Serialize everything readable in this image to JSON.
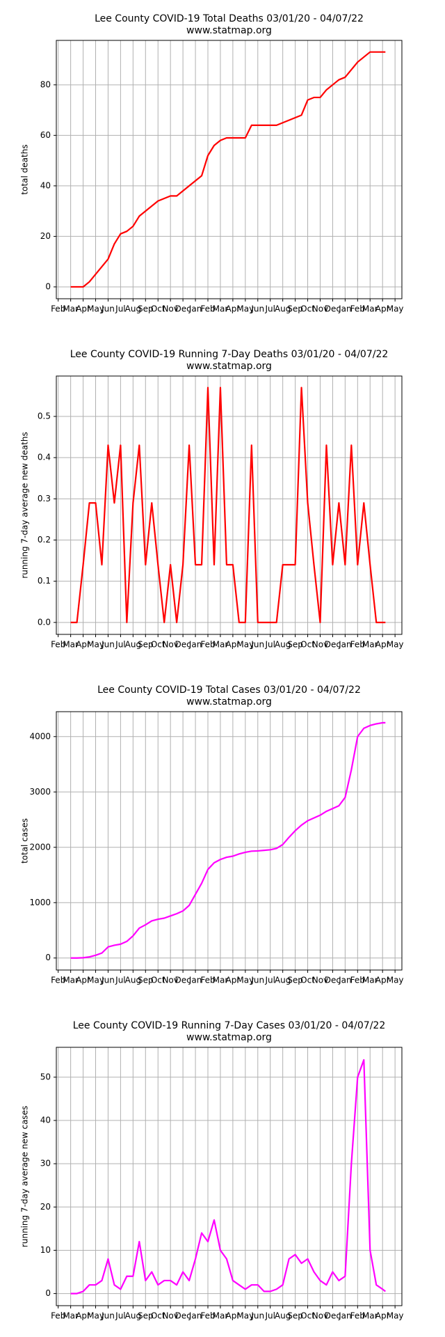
{
  "chart_data": [
    {
      "type": "line",
      "title": "Lee County COVID-19 Total Deaths 03/01/20 - 04/07/22",
      "subtitle": "www.statmap.org",
      "y_label": "total deaths",
      "color": "#ff0000",
      "grid": true,
      "x": [
        1,
        1.5,
        2,
        2.5,
        3,
        3.5,
        4,
        4.5,
        5,
        5.5,
        6,
        6.5,
        7,
        7.5,
        8,
        8.5,
        9,
        9.5,
        10,
        10.5,
        11,
        11.5,
        12,
        12.5,
        13,
        13.5,
        14,
        14.5,
        15,
        15.5,
        16,
        16.5,
        17,
        17.5,
        18,
        18.5,
        19,
        19.5,
        20,
        20.5,
        21,
        21.5,
        22,
        22.5,
        23,
        23.5,
        24,
        24.5,
        25,
        25.5,
        26,
        26.23
      ],
      "values": [
        0,
        0,
        0,
        2,
        5,
        8,
        11,
        17,
        21,
        22,
        24,
        28,
        30,
        32,
        34,
        35,
        36,
        36,
        38,
        40,
        42,
        44,
        52,
        56,
        58,
        59,
        59,
        59,
        59,
        64,
        64,
        64,
        64,
        64,
        65,
        66,
        67,
        68,
        74,
        75,
        75,
        78,
        80,
        82,
        83,
        86,
        89,
        91,
        93,
        93,
        93,
        93
      ],
      "xlim": [
        -0.15,
        27.55
      ],
      "ylim": [
        -4.7,
        97.6
      ],
      "yticks": [
        0,
        20,
        40,
        60,
        80
      ],
      "xticks": [
        {
          "value": 0,
          "label": "Feb"
        },
        {
          "value": 1,
          "label": "Mar"
        },
        {
          "value": 2,
          "label": "Apr"
        },
        {
          "value": 3,
          "label": "May"
        },
        {
          "value": 4,
          "label": "Jun"
        },
        {
          "value": 5,
          "label": "Jul"
        },
        {
          "value": 6,
          "label": "Aug"
        },
        {
          "value": 7,
          "label": "Sep"
        },
        {
          "value": 8,
          "label": "Oct"
        },
        {
          "value": 9,
          "label": "Nov"
        },
        {
          "value": 10,
          "label": "Dec"
        },
        {
          "value": 11,
          "label": "Jan"
        },
        {
          "value": 12,
          "label": "Feb"
        },
        {
          "value": 13,
          "label": "Mar"
        },
        {
          "value": 14,
          "label": "Apr"
        },
        {
          "value": 15,
          "label": "May"
        },
        {
          "value": 16,
          "label": "Jun"
        },
        {
          "value": 17,
          "label": "Jul"
        },
        {
          "value": 18,
          "label": "Aug"
        },
        {
          "value": 19,
          "label": "Sep"
        },
        {
          "value": 20,
          "label": "Oct"
        },
        {
          "value": 21,
          "label": "Nov"
        },
        {
          "value": 22,
          "label": "Dec"
        },
        {
          "value": 23,
          "label": "Jan"
        },
        {
          "value": 24,
          "label": "Feb"
        },
        {
          "value": 25,
          "label": "Mar"
        },
        {
          "value": 26,
          "label": "Apr"
        },
        {
          "value": 27,
          "label": "May"
        }
      ]
    },
    {
      "type": "line",
      "title": "Lee County COVID-19 Running 7-Day Deaths 03/01/20 - 04/07/22",
      "subtitle": "www.statmap.org",
      "y_label": "running 7-day average new deaths",
      "color": "#ff0000",
      "grid": true,
      "x": [
        1,
        1.5,
        2,
        2.5,
        3,
        3.5,
        4,
        4.5,
        5,
        5.5,
        6,
        6.5,
        7,
        7.5,
        8,
        8.5,
        9,
        9.5,
        10,
        10.5,
        11,
        11.5,
        12,
        12.5,
        13,
        13.5,
        14,
        14.5,
        15,
        15.5,
        16,
        16.5,
        17,
        17.5,
        18,
        18.5,
        19,
        19.5,
        20,
        20.5,
        21,
        21.5,
        22,
        22.5,
        23,
        23.5,
        24,
        24.5,
        25,
        25.5,
        26,
        26.23
      ],
      "values": [
        0,
        0,
        0.14,
        0.29,
        0.29,
        0.14,
        0.43,
        0.29,
        0.43,
        0,
        0.29,
        0.43,
        0.14,
        0.29,
        0.14,
        0,
        0.14,
        0,
        0.14,
        0.43,
        0.14,
        0.14,
        0.57,
        0.14,
        0.57,
        0.14,
        0.14,
        0,
        0,
        0.43,
        0,
        0,
        0,
        0,
        0.14,
        0.14,
        0.14,
        0.57,
        0.29,
        0.14,
        0,
        0.43,
        0.14,
        0.29,
        0.14,
        0.43,
        0.14,
        0.29,
        0.14,
        0,
        0,
        0
      ],
      "xlim": [
        -0.15,
        27.55
      ],
      "ylim": [
        -0.029,
        0.598
      ],
      "yticks": [
        {
          "value": 0,
          "label": "0.0"
        },
        {
          "value": 0.1,
          "label": "0.1"
        },
        {
          "value": 0.2,
          "label": "0.2"
        },
        {
          "value": 0.3,
          "label": "0.3"
        },
        {
          "value": 0.4,
          "label": "0.4"
        },
        {
          "value": 0.5,
          "label": "0.5"
        }
      ],
      "xticks": [
        {
          "value": 0,
          "label": "Feb"
        },
        {
          "value": 1,
          "label": "Mar"
        },
        {
          "value": 2,
          "label": "Apr"
        },
        {
          "value": 3,
          "label": "May"
        },
        {
          "value": 4,
          "label": "Jun"
        },
        {
          "value": 5,
          "label": "Jul"
        },
        {
          "value": 6,
          "label": "Aug"
        },
        {
          "value": 7,
          "label": "Sep"
        },
        {
          "value": 8,
          "label": "Oct"
        },
        {
          "value": 9,
          "label": "Nov"
        },
        {
          "value": 10,
          "label": "Dec"
        },
        {
          "value": 11,
          "label": "Jan"
        },
        {
          "value": 12,
          "label": "Feb"
        },
        {
          "value": 13,
          "label": "Mar"
        },
        {
          "value": 14,
          "label": "Apr"
        },
        {
          "value": 15,
          "label": "May"
        },
        {
          "value": 16,
          "label": "Jun"
        },
        {
          "value": 17,
          "label": "Jul"
        },
        {
          "value": 18,
          "label": "Aug"
        },
        {
          "value": 19,
          "label": "Sep"
        },
        {
          "value": 20,
          "label": "Oct"
        },
        {
          "value": 21,
          "label": "Nov"
        },
        {
          "value": 22,
          "label": "Dec"
        },
        {
          "value": 23,
          "label": "Jan"
        },
        {
          "value": 24,
          "label": "Feb"
        },
        {
          "value": 25,
          "label": "Mar"
        },
        {
          "value": 26,
          "label": "Apr"
        },
        {
          "value": 27,
          "label": "May"
        }
      ]
    },
    {
      "type": "line",
      "title": "Lee County COVID-19 Total Cases 03/01/20 - 04/07/22",
      "subtitle": "www.statmap.org",
      "y_label": "total cases",
      "color": "#ff00ff",
      "grid": true,
      "x": [
        1,
        1.5,
        2,
        2.5,
        3,
        3.5,
        4,
        4.5,
        5,
        5.5,
        6,
        6.5,
        7,
        7.5,
        8,
        8.5,
        9,
        9.5,
        10,
        10.5,
        11,
        11.5,
        12,
        12.5,
        13,
        13.5,
        14,
        14.5,
        15,
        15.5,
        16,
        16.5,
        17,
        17.5,
        18,
        18.5,
        19,
        19.5,
        20,
        20.5,
        21,
        21.5,
        22,
        22.5,
        23,
        23.5,
        24,
        24.5,
        25,
        25.5,
        26,
        26.23
      ],
      "values": [
        0,
        0,
        5,
        20,
        50,
        90,
        200,
        230,
        250,
        300,
        400,
        540,
        600,
        670,
        700,
        720,
        760,
        800,
        850,
        950,
        1150,
        1350,
        1600,
        1720,
        1780,
        1820,
        1840,
        1880,
        1910,
        1930,
        1935,
        1945,
        1955,
        1980,
        2050,
        2180,
        2300,
        2400,
        2480,
        2530,
        2580,
        2650,
        2700,
        2750,
        2900,
        3400,
        4000,
        4150,
        4200,
        4230,
        4250,
        4250
      ],
      "xlim": [
        -0.15,
        27.55
      ],
      "ylim": [
        -217,
        4450
      ],
      "yticks": [
        0,
        1000,
        2000,
        3000,
        4000
      ],
      "xticks": [
        {
          "value": 0,
          "label": "Feb"
        },
        {
          "value": 1,
          "label": "Mar"
        },
        {
          "value": 2,
          "label": "Apr"
        },
        {
          "value": 3,
          "label": "May"
        },
        {
          "value": 4,
          "label": "Jun"
        },
        {
          "value": 5,
          "label": "Jul"
        },
        {
          "value": 6,
          "label": "Aug"
        },
        {
          "value": 7,
          "label": "Sep"
        },
        {
          "value": 8,
          "label": "Oct"
        },
        {
          "value": 9,
          "label": "Nov"
        },
        {
          "value": 10,
          "label": "Dec"
        },
        {
          "value": 11,
          "label": "Jan"
        },
        {
          "value": 12,
          "label": "Feb"
        },
        {
          "value": 13,
          "label": "Mar"
        },
        {
          "value": 14,
          "label": "Apr"
        },
        {
          "value": 15,
          "label": "May"
        },
        {
          "value": 16,
          "label": "Jun"
        },
        {
          "value": 17,
          "label": "Jul"
        },
        {
          "value": 18,
          "label": "Aug"
        },
        {
          "value": 19,
          "label": "Sep"
        },
        {
          "value": 20,
          "label": "Oct"
        },
        {
          "value": 21,
          "label": "Nov"
        },
        {
          "value": 22,
          "label": "Dec"
        },
        {
          "value": 23,
          "label": "Jan"
        },
        {
          "value": 24,
          "label": "Feb"
        },
        {
          "value": 25,
          "label": "Mar"
        },
        {
          "value": 26,
          "label": "Apr"
        },
        {
          "value": 27,
          "label": "May"
        }
      ]
    },
    {
      "type": "line",
      "title": "Lee County COVID-19 Running 7-Day Cases 03/01/20 - 04/07/22",
      "subtitle": "www.statmap.org",
      "y_label": "running 7-day average new cases",
      "color": "#ff00ff",
      "grid": true,
      "x": [
        1,
        1.5,
        2,
        2.5,
        3,
        3.5,
        4,
        4.5,
        5,
        5.5,
        6,
        6.5,
        7,
        7.5,
        8,
        8.5,
        9,
        9.5,
        10,
        10.5,
        11,
        11.5,
        12,
        12.5,
        13,
        13.5,
        14,
        14.5,
        15,
        15.5,
        16,
        16.5,
        17,
        17.5,
        18,
        18.5,
        19,
        19.5,
        20,
        20.5,
        21,
        21.5,
        22,
        22.5,
        23,
        23.5,
        24,
        24.5,
        25,
        25.5,
        26,
        26.23
      ],
      "values": [
        0,
        0,
        0.5,
        2,
        2,
        3,
        8,
        2,
        1,
        4,
        4,
        12,
        3,
        5,
        2,
        3,
        3,
        2,
        5,
        3,
        8,
        14,
        12,
        17,
        10,
        8,
        3,
        2,
        1,
        2,
        2,
        0.5,
        0.5,
        1,
        2,
        8,
        9,
        7,
        8,
        5,
        3,
        2,
        5,
        3,
        4,
        30,
        50,
        54,
        10,
        2,
        1,
        0.5
      ],
      "xlim": [
        -0.15,
        27.55
      ],
      "ylim": [
        -2.8,
        56.9
      ],
      "yticks": [
        0,
        10,
        20,
        30,
        40,
        50
      ],
      "xticks": [
        {
          "value": 0,
          "label": "Feb"
        },
        {
          "value": 1,
          "label": "Mar"
        },
        {
          "value": 2,
          "label": "Apr"
        },
        {
          "value": 3,
          "label": "May"
        },
        {
          "value": 4,
          "label": "Jun"
        },
        {
          "value": 5,
          "label": "Jul"
        },
        {
          "value": 6,
          "label": "Aug"
        },
        {
          "value": 7,
          "label": "Sep"
        },
        {
          "value": 8,
          "label": "Oct"
        },
        {
          "value": 9,
          "label": "Nov"
        },
        {
          "value": 10,
          "label": "Dec"
        },
        {
          "value": 11,
          "label": "Jan"
        },
        {
          "value": 12,
          "label": "Feb"
        },
        {
          "value": 13,
          "label": "Mar"
        },
        {
          "value": 14,
          "label": "Apr"
        },
        {
          "value": 15,
          "label": "May"
        },
        {
          "value": 16,
          "label": "Jun"
        },
        {
          "value": 17,
          "label": "Jul"
        },
        {
          "value": 18,
          "label": "Aug"
        },
        {
          "value": 19,
          "label": "Sep"
        },
        {
          "value": 20,
          "label": "Oct"
        },
        {
          "value": 21,
          "label": "Nov"
        },
        {
          "value": 22,
          "label": "Dec"
        },
        {
          "value": 23,
          "label": "Jan"
        },
        {
          "value": 24,
          "label": "Feb"
        },
        {
          "value": 25,
          "label": "Mar"
        },
        {
          "value": 26,
          "label": "Apr"
        },
        {
          "value": 27,
          "label": "May"
        }
      ]
    }
  ]
}
